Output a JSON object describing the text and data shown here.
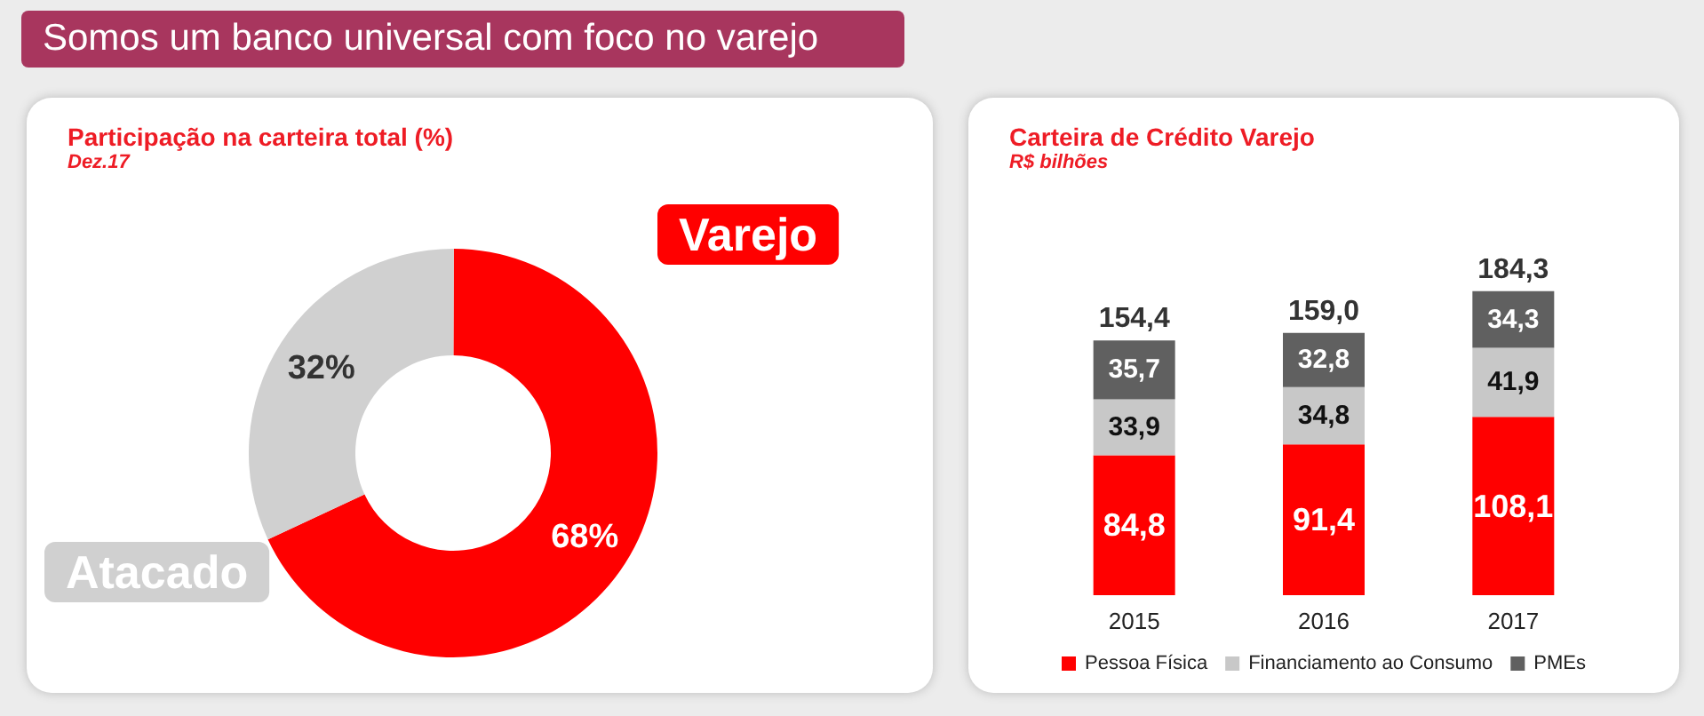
{
  "chart_data": [
    {
      "type": "donut",
      "title": "Participação na carteira total (%)",
      "subtitle": "Dez.17",
      "annotations": [
        "Somos um banco universal com foco no varejo"
      ],
      "categories": [
        "Varejo",
        "Atacado"
      ],
      "values": [
        68,
        32
      ],
      "colors": [
        "#ff0000",
        "#d0d0d0"
      ],
      "value_labels": [
        "68%",
        "32%"
      ]
    },
    {
      "type": "bar",
      "title": "Carteira de Crédito Varejo",
      "subtitle": "R$ bilhões",
      "categories": [
        "2015",
        "2016",
        "2017"
      ],
      "stacked": true,
      "legend": "bottom",
      "totals": [
        "154,4",
        "159,0",
        "184,3"
      ],
      "series": [
        {
          "name": "Pessoa Física",
          "color": "#ff0000",
          "values": [
            84.8,
            91.4,
            108.1
          ],
          "value_labels": [
            "84,8",
            "91,4",
            "108,1"
          ]
        },
        {
          "name": "Financiamento ao Consumo",
          "color": "#c8c8c8",
          "values": [
            33.9,
            34.8,
            41.9
          ],
          "value_labels": [
            "33,9",
            "34,8",
            "41,9"
          ]
        },
        {
          "name": "PMEs",
          "color": "#606060",
          "values": [
            35.7,
            32.8,
            34.3
          ],
          "value_labels": [
            "35,7",
            "32,8",
            "34,3"
          ]
        }
      ]
    }
  ]
}
